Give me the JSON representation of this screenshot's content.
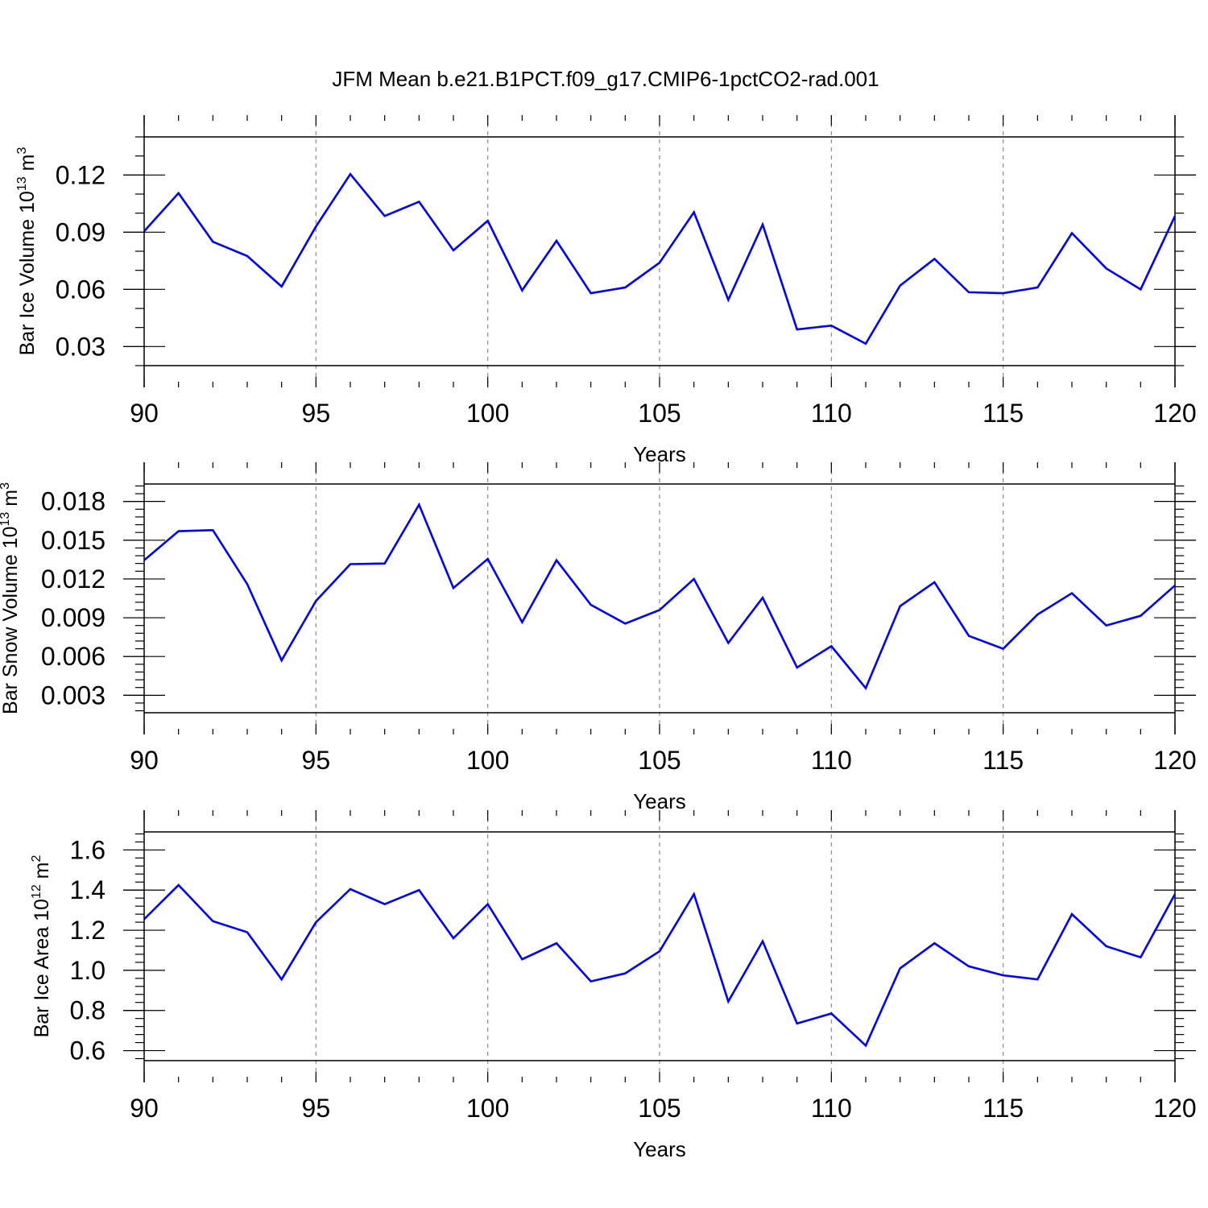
{
  "title": "JFM Mean b.e21.B1PCT.f09_g17.CMIP6-1pctCO2-rad.001",
  "line_color": "#0000ff",
  "chart_data": [
    {
      "type": "line",
      "ylabel": {
        "base": "Bar Ice Volume 10",
        "exp": "13",
        "unit": " m",
        "unit_exp": "3"
      },
      "xlabel": "Years",
      "xlim": [
        90,
        120
      ],
      "ylim": [
        0.02,
        0.14
      ],
      "x_ticks": [
        90,
        95,
        100,
        105,
        110,
        115,
        120
      ],
      "x_tick_labels": [
        "90",
        "95",
        "100",
        "105",
        "110",
        "115",
        "120"
      ],
      "y_ticks": [
        0.03,
        0.06,
        0.09,
        0.12
      ],
      "y_tick_labels": [
        "0.03",
        "0.06",
        "0.09",
        "0.12"
      ],
      "x_minor_step": 1,
      "y_minor_step": 0.01,
      "grid": "vertical dashed at major x ticks",
      "x": [
        90,
        91,
        92,
        93,
        94,
        95,
        96,
        97,
        98,
        99,
        100,
        101,
        102,
        103,
        104,
        105,
        106,
        107,
        108,
        109,
        110,
        111,
        112,
        113,
        114,
        115,
        116,
        117,
        118,
        119,
        120
      ],
      "series": [
        {
          "values": [
            0.0905,
            0.1105,
            0.085,
            0.0775,
            0.0615,
            0.093,
            0.1205,
            0.0985,
            0.106,
            0.0805,
            0.096,
            0.0595,
            0.0855,
            0.058,
            0.061,
            0.074,
            0.1005,
            0.0545,
            0.094,
            0.039,
            0.041,
            0.0315,
            0.062,
            0.076,
            0.0585,
            0.058,
            0.061,
            0.0895,
            0.071,
            0.06,
            0.0985
          ]
        }
      ]
    },
    {
      "type": "line",
      "ylabel": {
        "base": "Bar Snow Volume 10",
        "exp": "13",
        "unit": " m",
        "unit_exp": "3"
      },
      "xlabel": "Years",
      "xlim": [
        90,
        120
      ],
      "ylim": [
        0.00165,
        0.01935
      ],
      "x_ticks": [
        90,
        95,
        100,
        105,
        110,
        115,
        120
      ],
      "x_tick_labels": [
        "90",
        "95",
        "100",
        "105",
        "110",
        "115",
        "120"
      ],
      "y_ticks": [
        0.003,
        0.006,
        0.009,
        0.012,
        0.015,
        0.018
      ],
      "y_tick_labels": [
        "0.003",
        "0.006",
        "0.009",
        "0.012",
        "0.015",
        "0.018"
      ],
      "x_minor_step": 1,
      "y_minor_step": 0.0006,
      "grid": "vertical dashed at major x ticks",
      "x": [
        90,
        91,
        92,
        93,
        94,
        95,
        96,
        97,
        98,
        99,
        100,
        101,
        102,
        103,
        104,
        105,
        106,
        107,
        108,
        109,
        110,
        111,
        112,
        113,
        114,
        115,
        116,
        117,
        118,
        119,
        120
      ],
      "series": [
        {
          "values": [
            0.01345,
            0.0157,
            0.01578,
            0.0116,
            0.0057,
            0.0103,
            0.01315,
            0.0132,
            0.01775,
            0.0113,
            0.01355,
            0.00865,
            0.01345,
            0.01,
            0.00855,
            0.0096,
            0.012,
            0.00705,
            0.01055,
            0.00515,
            0.0068,
            0.00355,
            0.0099,
            0.01175,
            0.0076,
            0.0066,
            0.00925,
            0.0109,
            0.0084,
            0.00915,
            0.0115
          ]
        }
      ]
    },
    {
      "type": "line",
      "ylabel": {
        "base": "Bar Ice Area 10",
        "exp": "12",
        "unit": " m",
        "unit_exp": "2"
      },
      "xlabel": "Years",
      "xlim": [
        90,
        120
      ],
      "ylim": [
        0.55,
        1.69
      ],
      "x_ticks": [
        90,
        95,
        100,
        105,
        110,
        115,
        120
      ],
      "x_tick_labels": [
        "90",
        "95",
        "100",
        "105",
        "110",
        "115",
        "120"
      ],
      "y_ticks": [
        0.6,
        0.8,
        1.0,
        1.2,
        1.4,
        1.6
      ],
      "y_tick_labels": [
        "0.6",
        "0.8",
        "1.0",
        "1.2",
        "1.4",
        "1.6"
      ],
      "x_minor_step": 1,
      "y_minor_step": 0.04,
      "grid": "vertical dashed at major x ticks",
      "x": [
        90,
        91,
        92,
        93,
        94,
        95,
        96,
        97,
        98,
        99,
        100,
        101,
        102,
        103,
        104,
        105,
        106,
        107,
        108,
        109,
        110,
        111,
        112,
        113,
        114,
        115,
        116,
        117,
        118,
        119,
        120
      ],
      "series": [
        {
          "values": [
            1.255,
            1.425,
            1.245,
            1.19,
            0.955,
            1.24,
            1.405,
            1.33,
            1.4,
            1.16,
            1.33,
            1.055,
            1.135,
            0.945,
            0.985,
            1.095,
            1.38,
            0.845,
            1.145,
            0.735,
            0.785,
            0.625,
            1.01,
            1.135,
            1.02,
            0.975,
            0.955,
            1.28,
            1.12,
            1.065,
            1.38
          ]
        }
      ]
    }
  ]
}
